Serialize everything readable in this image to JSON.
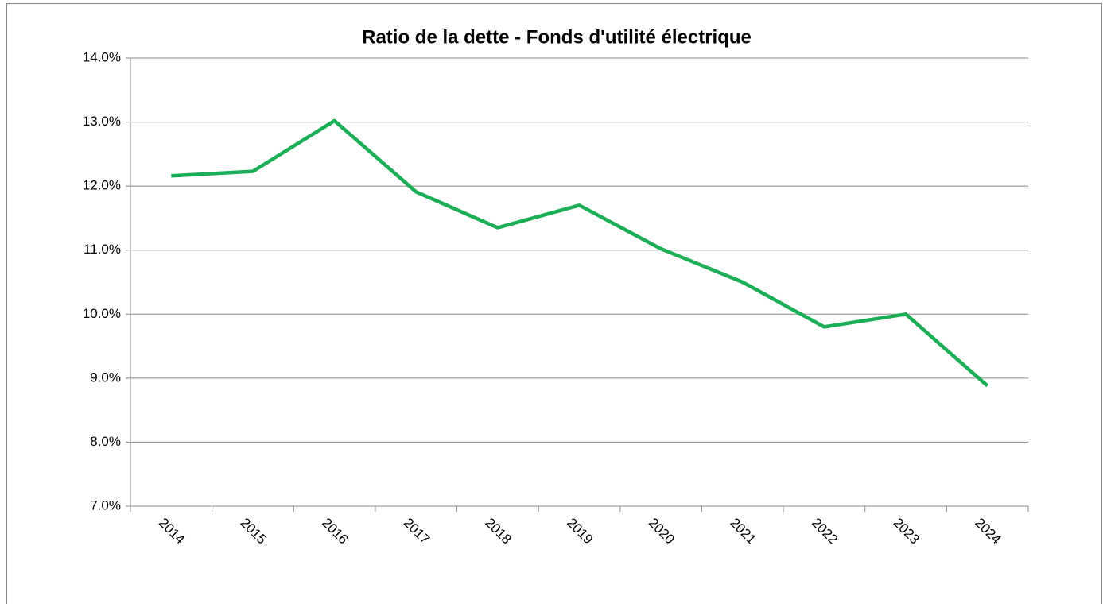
{
  "chart_data": {
    "type": "line",
    "title": "Ratio de la dette - Fonds d'utilité électrique",
    "categories": [
      "2014",
      "2015",
      "2016",
      "2017",
      "2018",
      "2019",
      "2020",
      "2021",
      "2022",
      "2023",
      "2024"
    ],
    "series": [
      {
        "name": "Ratio de la dette",
        "color": "#1aaf54",
        "values": [
          12.16,
          12.23,
          13.02,
          11.91,
          11.35,
          11.7,
          11.02,
          10.5,
          9.8,
          10.0,
          8.88
        ]
      }
    ],
    "ylim": [
      7,
      14
    ],
    "yticks": [
      {
        "value": 7,
        "label": "7.0%"
      },
      {
        "value": 8,
        "label": "8.0%"
      },
      {
        "value": 9,
        "label": "9.0%"
      },
      {
        "value": 10,
        "label": "10.0%"
      },
      {
        "value": 11,
        "label": "11.0%"
      },
      {
        "value": 12,
        "label": "12.0%"
      },
      {
        "value": 13,
        "label": "13.0%"
      },
      {
        "value": 14,
        "label": "14.0%"
      }
    ],
    "grid": true
  }
}
